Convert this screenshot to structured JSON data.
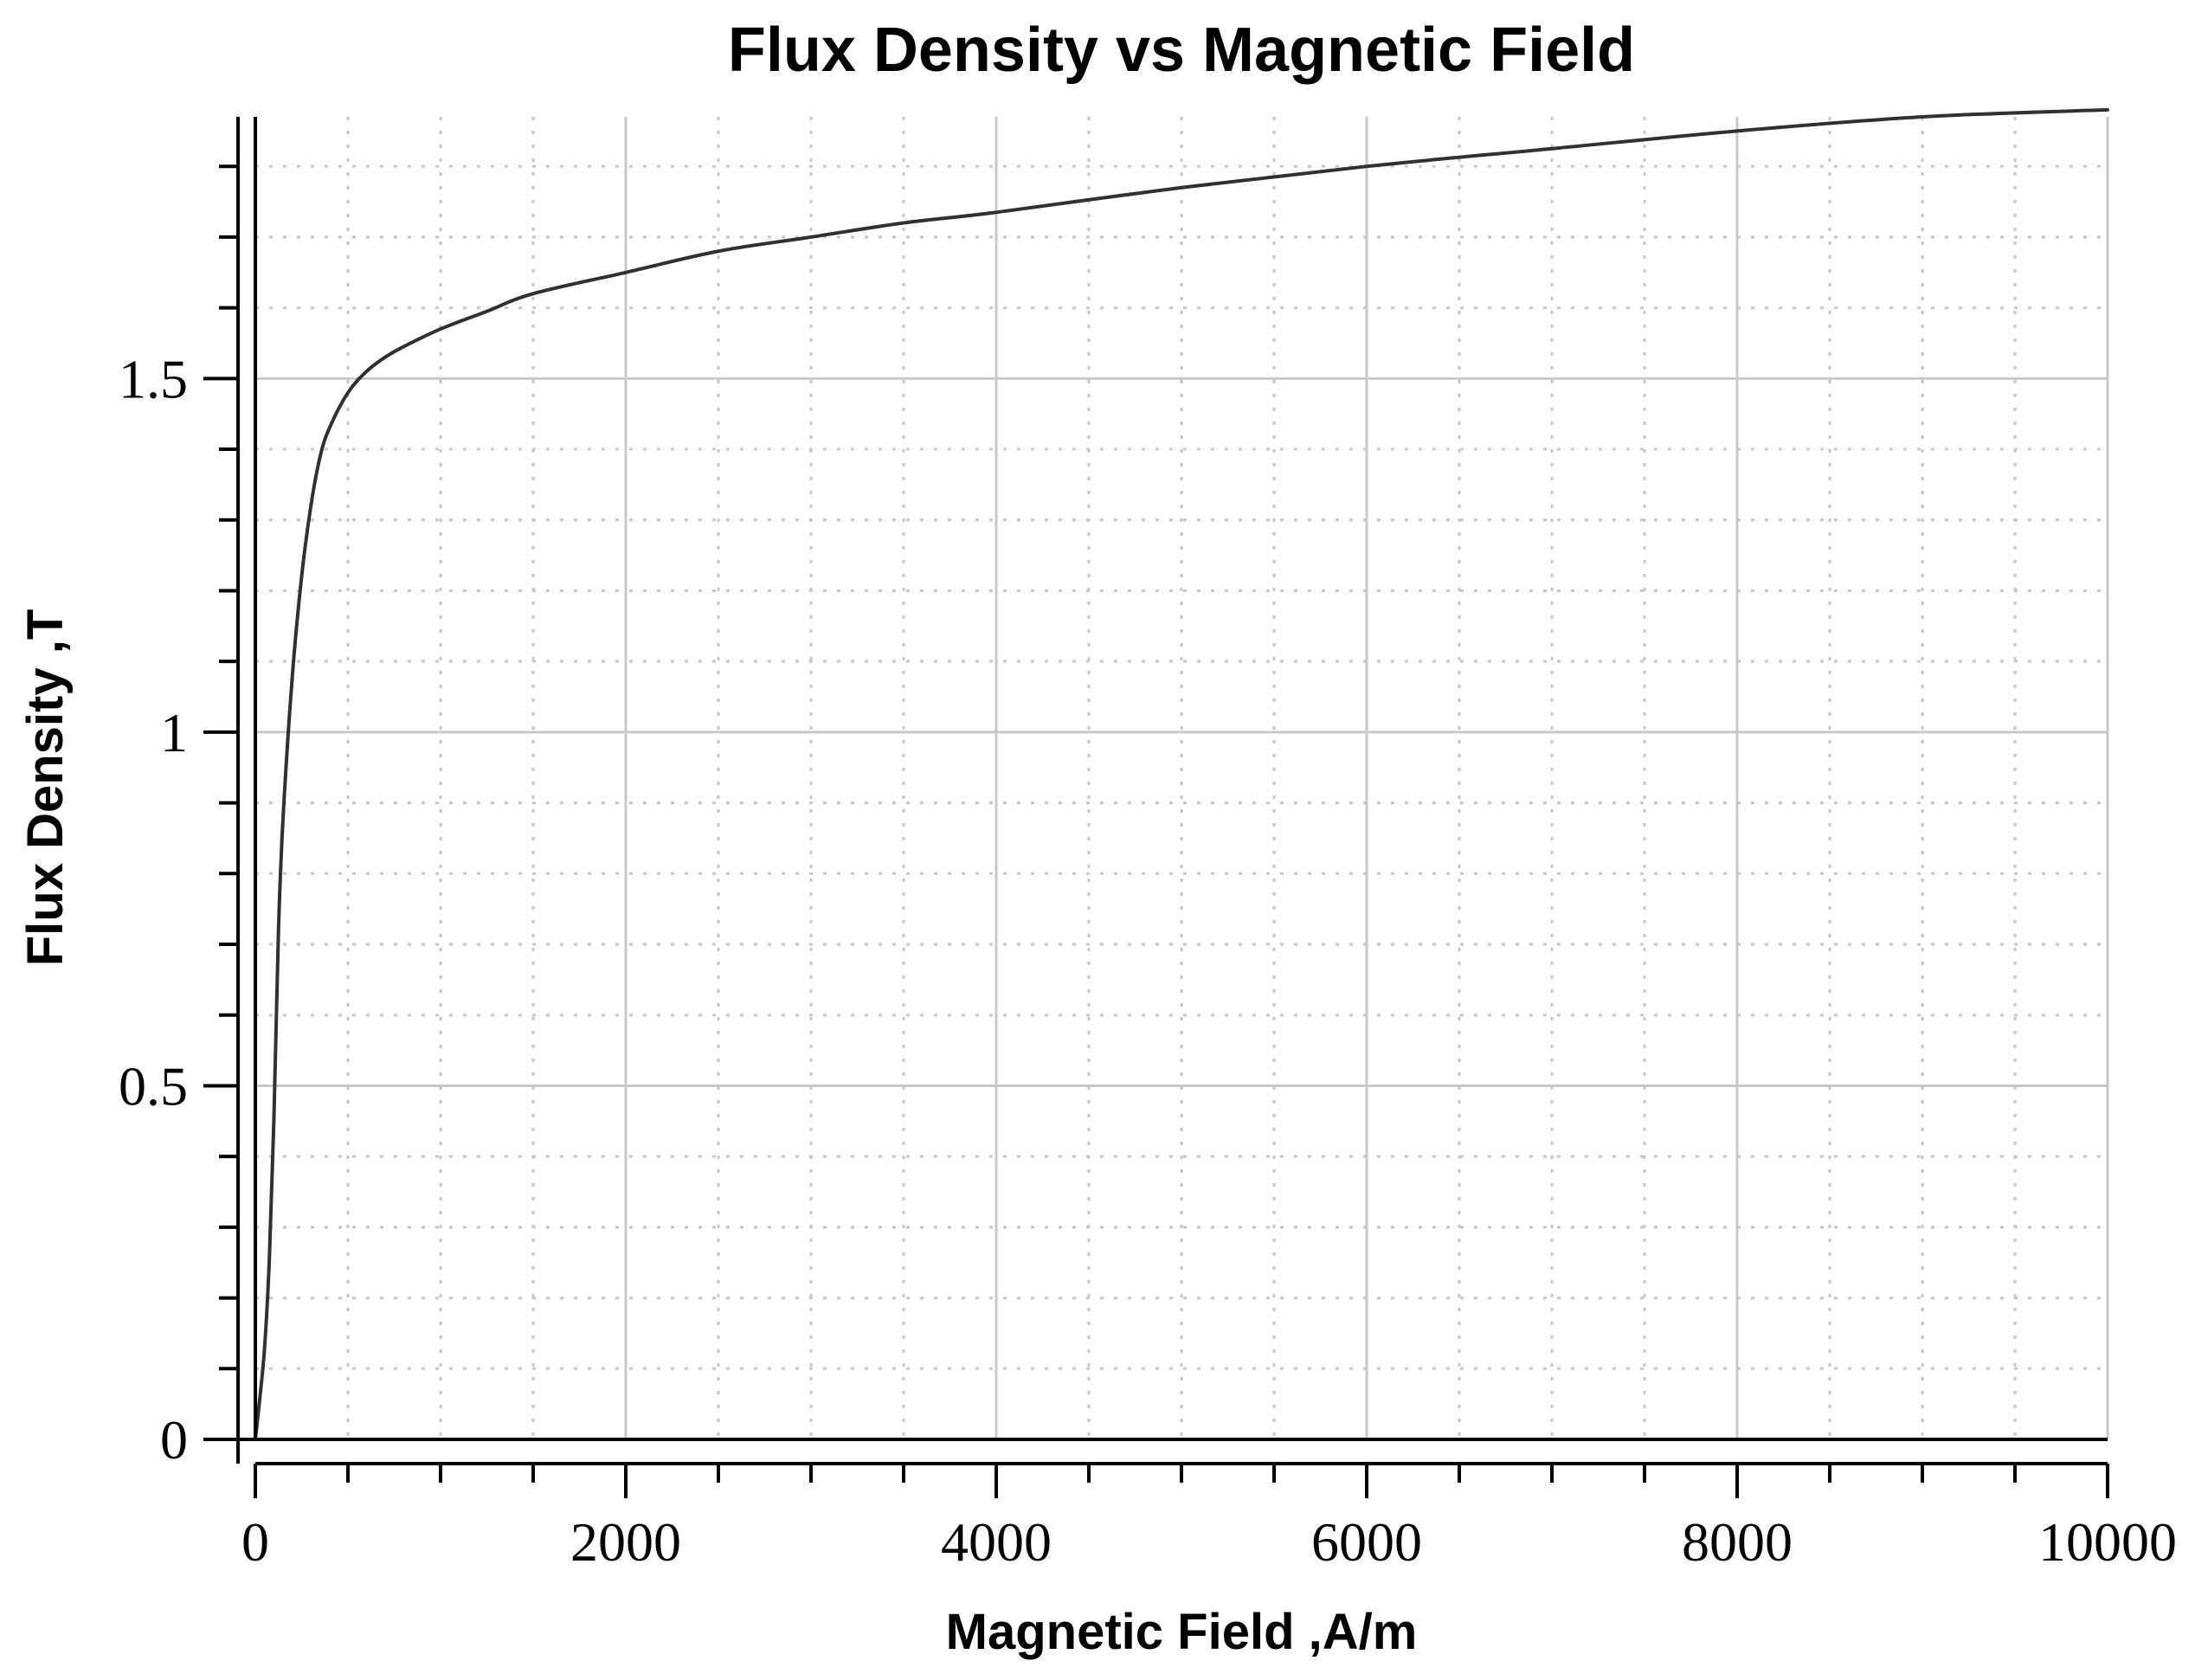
{
  "chart_data": {
    "type": "line",
    "title": "Flux Density vs Magnetic Field",
    "xlabel": "Magnetic Field ,A/m",
    "ylabel": "Flux Density ,T",
    "xlim": [
      0,
      10000
    ],
    "ylim": [
      0,
      1.87
    ],
    "x_ticks": [
      0,
      2000,
      4000,
      6000,
      8000,
      10000
    ],
    "x_tick_labels": [
      "0",
      "2000",
      "4000",
      "6000",
      "8000",
      "10000"
    ],
    "y_ticks": [
      0,
      0.5,
      1,
      1.5
    ],
    "y_tick_labels": [
      "0",
      "0.5",
      "1",
      "1.5"
    ],
    "x_minor_step": 500,
    "y_minor_step": 0.1,
    "grid": true,
    "legend": "none",
    "colors": {
      "curve": "#303030",
      "axis_label": "#000000"
    },
    "series": [
      {
        "x": [
          0,
          25,
          50,
          75,
          100,
          125,
          150,
          200,
          250,
          300,
          350,
          400,
          500,
          600,
          700,
          800,
          1000,
          1250,
          1500,
          2000,
          2500,
          3000,
          3500,
          4000,
          5000,
          6000,
          7000,
          8000,
          9000,
          10000
        ],
        "y": [
          0,
          0.06,
          0.13,
          0.25,
          0.45,
          0.72,
          0.88,
          1.08,
          1.22,
          1.32,
          1.39,
          1.43,
          1.48,
          1.51,
          1.53,
          1.545,
          1.57,
          1.595,
          1.62,
          1.65,
          1.68,
          1.7,
          1.72,
          1.735,
          1.77,
          1.8,
          1.825,
          1.85,
          1.87,
          1.88
        ]
      }
    ]
  }
}
